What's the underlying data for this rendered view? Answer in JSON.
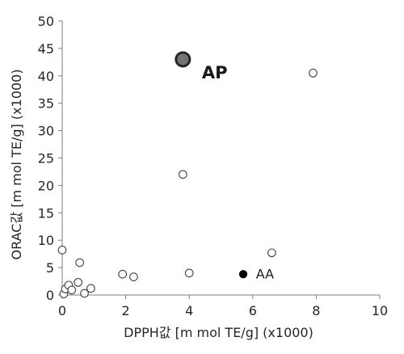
{
  "chart_data": {
    "type": "scatter",
    "xlabel": "DPPH값 [m mol TE/g] (x1000)",
    "ylabel": "ORAC값 [m mol TE/g] (x1000)",
    "xlim": [
      0,
      10
    ],
    "ylim": [
      0,
      50
    ],
    "x_ticks": [
      "0",
      "2",
      "4",
      "6",
      "8",
      "10"
    ],
    "y_ticks": [
      "0",
      "5",
      "10",
      "15",
      "20",
      "25",
      "30",
      "35",
      "40",
      "45",
      "50"
    ],
    "grid": false,
    "series": [
      {
        "points": [
          {
            "x": 0.0,
            "y": 8.2
          },
          {
            "x": 0.05,
            "y": 0.2
          },
          {
            "x": 0.1,
            "y": 1.1
          },
          {
            "x": 0.2,
            "y": 1.8
          },
          {
            "x": 0.3,
            "y": 0.9
          },
          {
            "x": 0.5,
            "y": 2.3
          },
          {
            "x": 0.55,
            "y": 5.9
          },
          {
            "x": 0.7,
            "y": 0.3
          },
          {
            "x": 0.9,
            "y": 1.2
          },
          {
            "x": 1.9,
            "y": 3.8
          },
          {
            "x": 2.25,
            "y": 3.3
          },
          {
            "x": 3.8,
            "y": 22.0
          },
          {
            "x": 4.0,
            "y": 4.0
          },
          {
            "x": 6.6,
            "y": 7.7
          },
          {
            "x": 7.9,
            "y": 40.5
          }
        ],
        "marker": "open-circle",
        "color": "#404040"
      },
      {
        "name": "AP",
        "points": [
          {
            "x": 3.8,
            "y": 43.0
          }
        ],
        "marker": "large-gray-circle",
        "color": "#737373",
        "edge_color": "#262626"
      },
      {
        "name": "AA",
        "points": [
          {
            "x": 5.7,
            "y": 3.8
          }
        ],
        "marker": "filled-circle",
        "color": "#000000"
      }
    ],
    "annotations": [
      {
        "text": "AP",
        "x": 4.4,
        "y": 39.5,
        "bold": true
      },
      {
        "text": "AA",
        "x": 6.1,
        "y": 3.0,
        "bold": false
      }
    ]
  }
}
